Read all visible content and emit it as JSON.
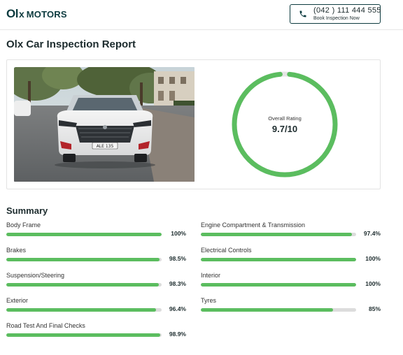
{
  "header": {
    "logo_olx": "Ol",
    "logo_x": "x",
    "logo_motors": "MOTORS",
    "phone_number": "(042 ) 111 444 555",
    "phone_subtext": "Book Inspection Now",
    "phone_icon": "phone-icon"
  },
  "report": {
    "title": "Olx Car Inspection Report",
    "rating_label": "Overall Rating",
    "rating_value": "9.7/10",
    "rating_fraction": 0.97,
    "accent_color": "#5bbd5f",
    "photo_plate": "ALE 135"
  },
  "summary": {
    "title": "Summary",
    "items": [
      {
        "label": "Body Frame",
        "value": "100%",
        "percent": 100
      },
      {
        "label": "Engine Compartment & Transmission",
        "value": "97.4%",
        "percent": 97.4
      },
      {
        "label": "Brakes",
        "value": "98.5%",
        "percent": 98.5
      },
      {
        "label": "Electrical Controls",
        "value": "100%",
        "percent": 100
      },
      {
        "label": "Suspension/Steering",
        "value": "98.3%",
        "percent": 98.3
      },
      {
        "label": "Interior",
        "value": "100%",
        "percent": 100
      },
      {
        "label": "Exterior",
        "value": "96.4%",
        "percent": 96.4
      },
      {
        "label": "Tyres",
        "value": "85%",
        "percent": 85
      },
      {
        "label": "Road Test And Final Checks",
        "value": "98.9%",
        "percent": 98.9
      }
    ]
  }
}
